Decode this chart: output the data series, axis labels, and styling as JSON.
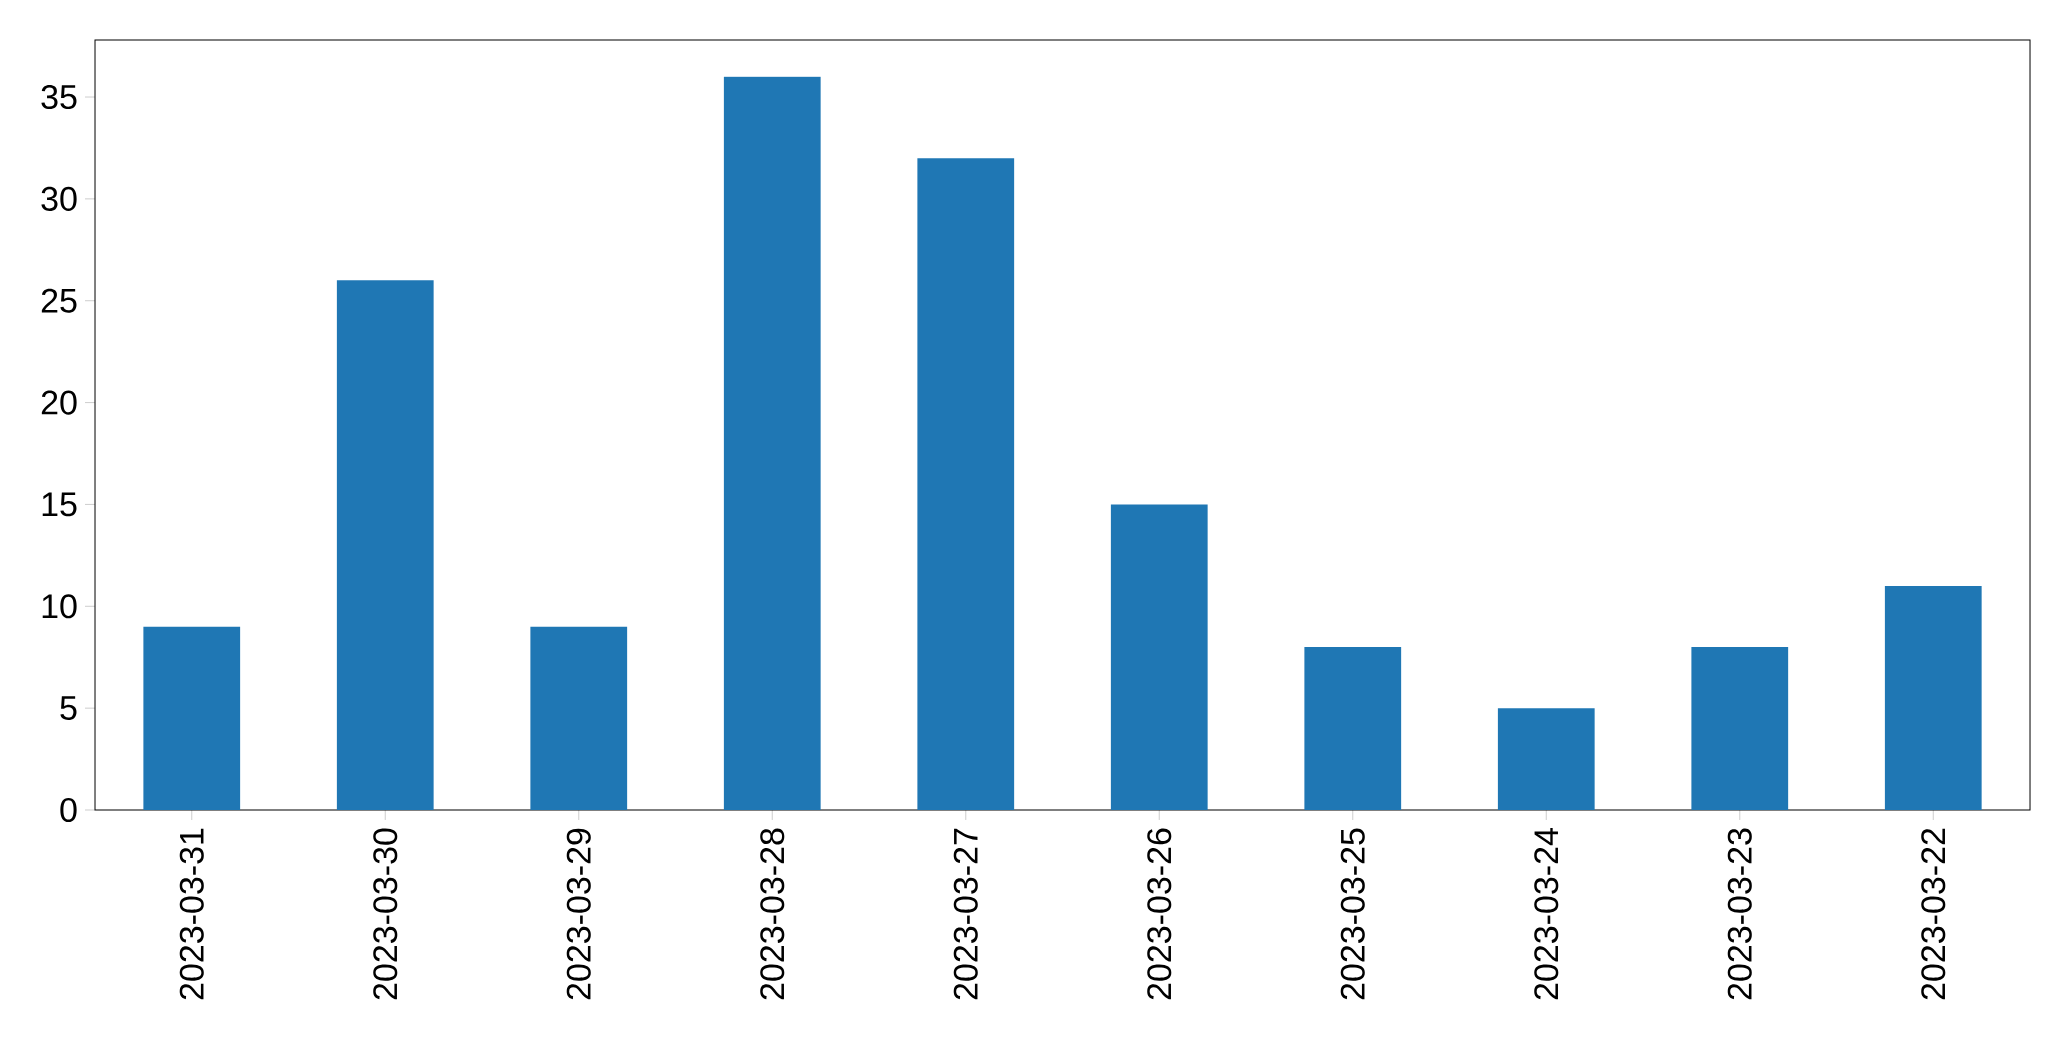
{
  "chart_data": {
    "type": "bar",
    "categories": [
      "2023-03-31",
      "2023-03-30",
      "2023-03-29",
      "2023-03-28",
      "2023-03-27",
      "2023-03-26",
      "2023-03-25",
      "2023-03-24",
      "2023-03-23",
      "2023-03-22"
    ],
    "values": [
      9,
      26,
      9,
      36,
      32,
      15,
      8,
      5,
      8,
      11
    ],
    "color": "#1f77b4",
    "ylim": [
      0,
      37.8
    ],
    "yticks": [
      0,
      5,
      10,
      15,
      20,
      25,
      30,
      35
    ]
  }
}
